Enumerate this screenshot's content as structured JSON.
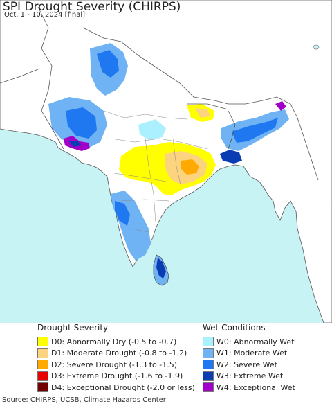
{
  "header": {
    "title": "SPI Drought Severity (CHIRPS)",
    "subtitle": "Oct. 1 - 10, 2024 [final]"
  },
  "colors": {
    "ocean": "#c8f3f5",
    "land": "#ffffff",
    "border": "#555555"
  },
  "legend": {
    "drought": {
      "heading": "Drought Severity",
      "items": [
        {
          "label": "D0: Abnormally Dry (-0.5 to -0.7)",
          "color": "#ffff00"
        },
        {
          "label": "D1: Moderate Drought (-0.8 to -1.2)",
          "color": "#fcd37f"
        },
        {
          "label": "D2: Severe Drought (-1.3 to -1.5)",
          "color": "#ffaa00"
        },
        {
          "label": "D3: Extreme Drought (-1.6 to -1.9)",
          "color": "#e60000"
        },
        {
          "label": "D4: Exceptional Drought (-2.0 or less)",
          "color": "#730000"
        }
      ]
    },
    "wet": {
      "heading": "Wet Conditions",
      "items": [
        {
          "label": "W0: Abnormally Wet",
          "color": "#aaf0ff"
        },
        {
          "label": "W1: Moderate Wet",
          "color": "#6fb3f5"
        },
        {
          "label": "W2: Severe Wet",
          "color": "#1f78f0"
        },
        {
          "label": "W3: Extreme Wet",
          "color": "#0a3cb4"
        },
        {
          "label": "W4: Exceptional Wet",
          "color": "#a000c8"
        }
      ]
    }
  },
  "footer": {
    "source": "Source: CHIRPS, UCSB, Climate Hazards Center"
  }
}
